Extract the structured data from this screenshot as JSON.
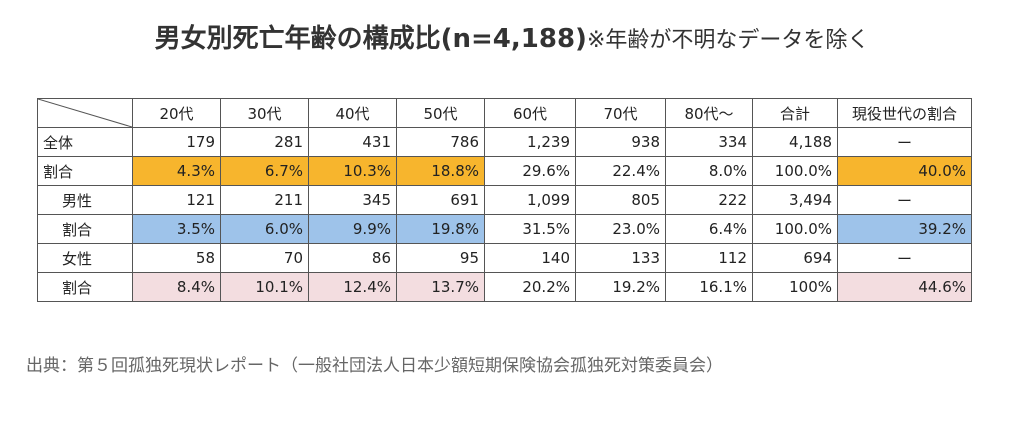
{
  "title": {
    "main": "男女別死亡年齢の構成比(n=4,188)",
    "note": "※年齢が不明なデータを除く"
  },
  "table": {
    "headers": [
      "20代",
      "30代",
      "40代",
      "50代",
      "60代",
      "70代",
      "80代～",
      "合計",
      "現役世代の割合"
    ],
    "rows": [
      {
        "label": "全体",
        "cells": [
          "179",
          "281",
          "431",
          "786",
          "1,239",
          "938",
          "334",
          "4,188",
          "ー"
        ]
      },
      {
        "label": "割合",
        "cells": [
          "4.3%",
          "6.7%",
          "10.3%",
          "18.8%",
          "29.6%",
          "22.4%",
          "8.0%",
          "100.0%",
          "40.0%"
        ]
      },
      {
        "label": "男性",
        "cells": [
          "121",
          "211",
          "345",
          "691",
          "1,099",
          "805",
          "222",
          "3,494",
          "ー"
        ]
      },
      {
        "label": "割合",
        "cells": [
          "3.5%",
          "6.0%",
          "9.9%",
          "19.8%",
          "31.5%",
          "23.0%",
          "6.4%",
          "100.0%",
          "39.2%"
        ]
      },
      {
        "label": "女性",
        "cells": [
          "58",
          "70",
          "86",
          "95",
          "140",
          "133",
          "112",
          "694",
          "ー"
        ]
      },
      {
        "label": "割合",
        "cells": [
          "8.4%",
          "10.1%",
          "12.4%",
          "13.7%",
          "20.2%",
          "19.2%",
          "16.1%",
          "100%",
          "44.6%"
        ]
      }
    ]
  },
  "colors": {
    "highlight_all": "#f7b52d",
    "highlight_male": "#9ec3ea",
    "highlight_female": "#f3dde0"
  },
  "source": "出典：第５回孤独死現状レポート（一般社団法人日本少額短期保険協会孤独死対策委員会）"
}
